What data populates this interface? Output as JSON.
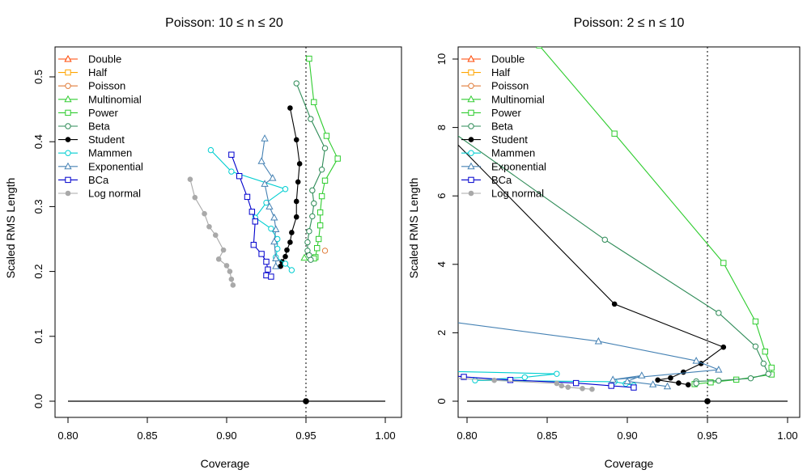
{
  "chart_data": [
    {
      "type": "line",
      "title": "Poisson: 10 ≤ n ≤ 20",
      "xlabel": "Coverage",
      "ylabel": "Scaled RMS Length",
      "xlim": [
        0.8,
        1.0
      ],
      "ylim": [
        0,
        0.5
      ],
      "xticks": [
        "0.80",
        "0.85",
        "0.90",
        "0.95",
        "1.00"
      ],
      "yticks": [
        "0.0",
        "0.1",
        "0.2",
        "0.3",
        "0.4",
        "0.5"
      ],
      "reference": {
        "target_coverage": 0.95,
        "baseline_x": [
          0.8,
          1.0
        ],
        "baseline_y": 0,
        "target_point": [
          0.95,
          0
        ]
      },
      "legend_position": "top-left",
      "series": [
        {
          "name": "Double",
          "color": "#FF4500",
          "marker": "triangle",
          "x": [],
          "y": []
        },
        {
          "name": "Half",
          "color": "#FFA500",
          "marker": "square",
          "x": [],
          "y": []
        },
        {
          "name": "Poisson",
          "color": "#E07B39",
          "marker": "circle-open",
          "x": [
            0.962
          ],
          "y": [
            0.232
          ]
        },
        {
          "name": "Multinomial",
          "color": "#32CD32",
          "marker": "triangle",
          "x": [
            0.949
          ],
          "y": [
            0.221
          ]
        },
        {
          "name": "Power",
          "color": "#2ECC2E",
          "marker": "square",
          "x": [
            0.952,
            0.955,
            0.963,
            0.97,
            0.962,
            0.96,
            0.959,
            0.959,
            0.958,
            0.957,
            0.956,
            0.955
          ],
          "y": [
            0.528,
            0.461,
            0.409,
            0.374,
            0.34,
            0.316,
            0.291,
            0.271,
            0.25,
            0.236,
            0.222,
            0.22
          ]
        },
        {
          "name": "Beta",
          "color": "#2E8B57",
          "marker": "circle-open",
          "x": [
            0.944,
            0.953,
            0.962,
            0.96,
            0.954,
            0.955,
            0.954,
            0.952,
            0.951,
            0.951,
            0.952,
            0.953
          ],
          "y": [
            0.49,
            0.435,
            0.39,
            0.357,
            0.325,
            0.305,
            0.285,
            0.262,
            0.245,
            0.232,
            0.225,
            0.218
          ]
        },
        {
          "name": "Student",
          "color": "#000000",
          "marker": "dot",
          "x": [
            0.94,
            0.944,
            0.946,
            0.945,
            0.944,
            0.944,
            0.941,
            0.94,
            0.938,
            0.937,
            0.935,
            0.934
          ],
          "y": [
            0.452,
            0.403,
            0.366,
            0.338,
            0.308,
            0.284,
            0.26,
            0.245,
            0.233,
            0.223,
            0.215,
            0.208
          ]
        },
        {
          "name": "Mammen",
          "color": "#00CED1",
          "marker": "circle-open",
          "x": [
            0.89,
            0.903,
            0.937,
            0.925,
            0.918,
            0.928,
            0.932,
            0.932,
            0.931,
            0.937,
            0.941
          ],
          "y": [
            0.387,
            0.354,
            0.327,
            0.306,
            0.283,
            0.266,
            0.25,
            0.235,
            0.222,
            0.212,
            0.202
          ]
        },
        {
          "name": "Exponential",
          "color": "#4682B4",
          "marker": "triangle",
          "x": [
            0.924,
            0.922,
            0.929,
            0.924,
            0.927,
            0.93,
            0.931,
            0.93,
            0.931,
            0.931
          ],
          "y": [
            0.405,
            0.37,
            0.344,
            0.335,
            0.3,
            0.283,
            0.265,
            0.246,
            0.22,
            0.208
          ]
        },
        {
          "name": "BCa",
          "color": "#0000CD",
          "marker": "square",
          "x": [
            0.903,
            0.908,
            0.913,
            0.916,
            0.918,
            0.917,
            0.922,
            0.925,
            0.926,
            0.925,
            0.928
          ],
          "y": [
            0.38,
            0.347,
            0.315,
            0.292,
            0.277,
            0.241,
            0.227,
            0.215,
            0.203,
            0.194,
            0.192
          ]
        },
        {
          "name": "Log normal",
          "color": "#A9A9A9",
          "marker": "dot",
          "x": [
            0.877,
            0.88,
            0.886,
            0.889,
            0.893,
            0.898,
            0.895,
            0.9,
            0.902,
            0.903,
            0.904
          ],
          "y": [
            0.342,
            0.314,
            0.289,
            0.269,
            0.256,
            0.233,
            0.219,
            0.209,
            0.2,
            0.188,
            0.179
          ]
        }
      ]
    },
    {
      "type": "line",
      "title": "Poisson: 2 ≤ n ≤ 10",
      "xlabel": "Coverage",
      "ylabel": "Scaled RMS Length",
      "xlim": [
        0.8,
        1.0
      ],
      "ylim": [
        0,
        10
      ],
      "xticks": [
        "0.80",
        "0.85",
        "0.90",
        "0.95",
        "1.00"
      ],
      "yticks": [
        "0",
        "2",
        "4",
        "6",
        "8",
        "10"
      ],
      "reference": {
        "target_coverage": 0.95,
        "baseline_x": [
          0.8,
          1.0
        ],
        "baseline_y": 0,
        "target_point": [
          0.95,
          0
        ]
      },
      "legend_position": "top-left",
      "series": [
        {
          "name": "Double",
          "color": "#FF4500",
          "marker": "triangle",
          "x": [],
          "y": []
        },
        {
          "name": "Half",
          "color": "#FFA500",
          "marker": "square",
          "x": [],
          "y": []
        },
        {
          "name": "Poisson",
          "color": "#E07B39",
          "marker": "circle-open",
          "x": [],
          "y": []
        },
        {
          "name": "Multinomial",
          "color": "#32CD32",
          "marker": "triangle",
          "x": [],
          "y": []
        },
        {
          "name": "Power",
          "color": "#2ECC2E",
          "marker": "square",
          "x": [
            0.845,
            0.892,
            0.96,
            0.98,
            0.986,
            0.99,
            0.99,
            0.968,
            0.952,
            0.942
          ],
          "y": [
            10.4,
            7.82,
            4.04,
            2.33,
            1.45,
            0.98,
            0.78,
            0.63,
            0.55,
            0.5
          ]
        },
        {
          "name": "Beta",
          "color": "#2E8B57",
          "marker": "circle-open",
          "x": [
            0.79,
            0.886,
            0.957,
            0.98,
            0.985,
            0.988,
            0.977,
            0.957,
            0.943,
            0.943
          ],
          "y": [
            7.9,
            4.72,
            2.58,
            1.6,
            1.1,
            0.8,
            0.67,
            0.6,
            0.58,
            0.52
          ]
        },
        {
          "name": "Student",
          "color": "#000000",
          "marker": "dot",
          "x": [
            0.79,
            0.892,
            0.96,
            0.946,
            0.935,
            0.927,
            0.919,
            0.932,
            0.938
          ],
          "y": [
            7.7,
            2.84,
            1.58,
            1.1,
            0.85,
            0.68,
            0.62,
            0.53,
            0.48
          ]
        },
        {
          "name": "Mammen",
          "color": "#00CED1",
          "marker": "circle-open",
          "x": [
            0.79,
            0.856,
            0.836,
            0.805,
            0.892,
            0.899,
            0.904
          ],
          "y": [
            0.87,
            0.8,
            0.7,
            0.61,
            0.57,
            0.51,
            0.46
          ]
        },
        {
          "name": "Exponential",
          "color": "#4682B4",
          "marker": "triangle",
          "x": [
            0.79,
            0.882,
            0.943,
            0.957,
            0.891,
            0.909,
            0.9,
            0.916,
            0.925
          ],
          "y": [
            2.32,
            1.75,
            1.18,
            0.92,
            0.63,
            0.75,
            0.58,
            0.49,
            0.43
          ]
        },
        {
          "name": "BCa",
          "color": "#0000CD",
          "marker": "square",
          "x": [
            0.79,
            0.798,
            0.827,
            0.868,
            0.89,
            0.904
          ],
          "y": [
            0.75,
            0.71,
            0.62,
            0.53,
            0.45,
            0.4
          ]
        },
        {
          "name": "Log normal",
          "color": "#A9A9A9",
          "marker": "dot",
          "x": [
            0.79,
            0.817,
            0.856,
            0.859,
            0.863,
            0.872,
            0.878
          ],
          "y": [
            0.68,
            0.61,
            0.52,
            0.45,
            0.41,
            0.37,
            0.35
          ]
        }
      ]
    }
  ]
}
